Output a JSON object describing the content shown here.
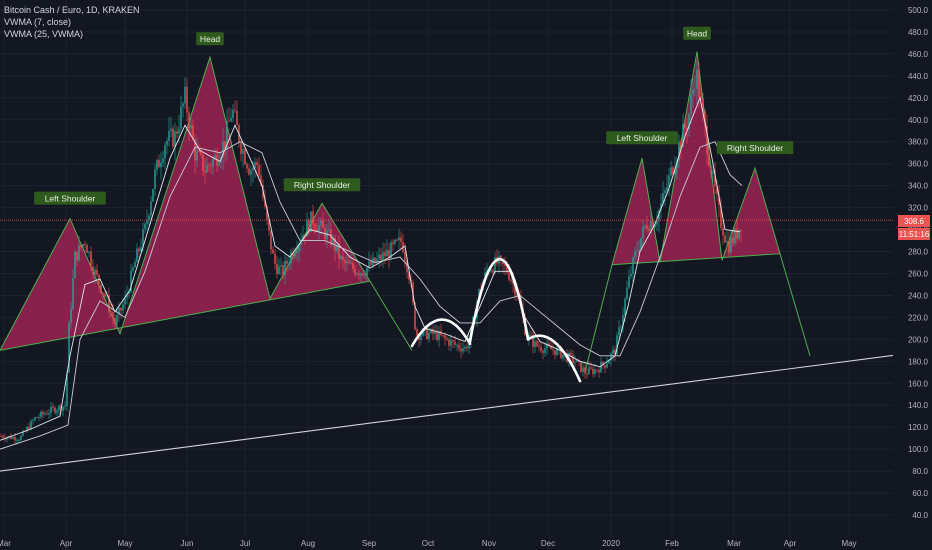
{
  "legend": {
    "title": "Bitcoin Cash / Euro, 1D, KRAKEN",
    "ind1": "VWMA (7, close)",
    "ind2": "VWMA (25, VWMA)"
  },
  "price_tag": {
    "value": "308.6",
    "countdown": "11:51:16",
    "price": 308.6
  },
  "colors": {
    "background": "#131722",
    "up": "#26a69a",
    "down": "#ef5350",
    "pattern_fill": "#b4245a",
    "pattern_stroke": "#4caf50",
    "trendline": "#d1d4dc",
    "label_bg": "#2e5a1e",
    "price_line": "#ef5350"
  },
  "chart_data": {
    "type": "candlestick",
    "x_axis": {
      "ticks": [
        "Mar",
        "Apr",
        "May",
        "Jun",
        "Jul",
        "Aug",
        "Sep",
        "Oct",
        "Nov",
        "Dec",
        "2020",
        "Feb",
        "Mar",
        "Apr",
        "May"
      ]
    },
    "y_axis": {
      "range": [
        30,
        500
      ],
      "ticks": [
        "500.0",
        "480.0",
        "460.0",
        "440.0",
        "420.0",
        "400.0",
        "380.0",
        "360.0",
        "340.0",
        "320.0",
        "300.0",
        "280.0",
        "260.0",
        "240.0",
        "220.0",
        "200.0",
        "180.0",
        "160.0",
        "140.0",
        "120.0",
        "100.0",
        "80.0",
        "60.0",
        "40.0"
      ]
    },
    "close_path": [
      [
        0,
        112
      ],
      [
        20,
        110
      ],
      [
        35,
        128
      ],
      [
        50,
        135
      ],
      [
        66,
        140
      ],
      [
        68,
        200
      ],
      [
        75,
        275
      ],
      [
        85,
        290
      ],
      [
        95,
        260
      ],
      [
        105,
        240
      ],
      [
        115,
        215
      ],
      [
        125,
        235
      ],
      [
        135,
        270
      ],
      [
        145,
        300
      ],
      [
        155,
        350
      ],
      [
        165,
        380
      ],
      [
        175,
        385
      ],
      [
        185,
        420
      ],
      [
        195,
        370
      ],
      [
        205,
        355
      ],
      [
        215,
        365
      ],
      [
        225,
        380
      ],
      [
        232,
        410
      ],
      [
        240,
        380
      ],
      [
        250,
        355
      ],
      [
        258,
        360
      ],
      [
        266,
        310
      ],
      [
        274,
        270
      ],
      [
        282,
        260
      ],
      [
        292,
        280
      ],
      [
        302,
        295
      ],
      [
        312,
        310
      ],
      [
        322,
        300
      ],
      [
        332,
        290
      ],
      [
        342,
        270
      ],
      [
        352,
        265
      ],
      [
        362,
        262
      ],
      [
        372,
        268
      ],
      [
        382,
        275
      ],
      [
        392,
        282
      ],
      [
        402,
        290
      ],
      [
        410,
        255
      ],
      [
        416,
        205
      ],
      [
        425,
        205
      ],
      [
        435,
        205
      ],
      [
        445,
        200
      ],
      [
        455,
        195
      ],
      [
        465,
        192
      ],
      [
        470,
        200
      ],
      [
        478,
        240
      ],
      [
        488,
        265
      ],
      [
        498,
        270
      ],
      [
        508,
        262
      ],
      [
        518,
        240
      ],
      [
        526,
        205
      ],
      [
        535,
        195
      ],
      [
        545,
        192
      ],
      [
        555,
        190
      ],
      [
        565,
        185
      ],
      [
        575,
        180
      ],
      [
        585,
        170
      ],
      [
        595,
        172
      ],
      [
        605,
        178
      ],
      [
        615,
        190
      ],
      [
        622,
        220
      ],
      [
        628,
        250
      ],
      [
        636,
        280
      ],
      [
        646,
        305
      ],
      [
        656,
        310
      ],
      [
        664,
        330
      ],
      [
        672,
        355
      ],
      [
        680,
        380
      ],
      [
        688,
        400
      ],
      [
        696,
        445
      ],
      [
        704,
        395
      ],
      [
        712,
        350
      ],
      [
        720,
        310
      ],
      [
        728,
        285
      ],
      [
        736,
        295
      ],
      [
        742,
        308
      ]
    ],
    "vwma7": [
      [
        0,
        108
      ],
      [
        30,
        118
      ],
      [
        60,
        130
      ],
      [
        70,
        185
      ],
      [
        85,
        250
      ],
      [
        100,
        255
      ],
      [
        115,
        225
      ],
      [
        130,
        245
      ],
      [
        150,
        305
      ],
      [
        170,
        365
      ],
      [
        185,
        395
      ],
      [
        200,
        372
      ],
      [
        220,
        362
      ],
      [
        235,
        395
      ],
      [
        250,
        365
      ],
      [
        262,
        340
      ],
      [
        275,
        285
      ],
      [
        290,
        275
      ],
      [
        310,
        300
      ],
      [
        330,
        295
      ],
      [
        350,
        275
      ],
      [
        370,
        265
      ],
      [
        390,
        275
      ],
      [
        405,
        285
      ],
      [
        415,
        230
      ],
      [
        425,
        210
      ],
      [
        445,
        205
      ],
      [
        465,
        198
      ],
      [
        480,
        230
      ],
      [
        495,
        262
      ],
      [
        510,
        262
      ],
      [
        525,
        220
      ],
      [
        540,
        198
      ],
      [
        560,
        190
      ],
      [
        580,
        180
      ],
      [
        600,
        175
      ],
      [
        615,
        185
      ],
      [
        628,
        230
      ],
      [
        640,
        280
      ],
      [
        655,
        305
      ],
      [
        670,
        340
      ],
      [
        685,
        385
      ],
      [
        700,
        420
      ],
      [
        712,
        365
      ],
      [
        725,
        300
      ],
      [
        740,
        298
      ]
    ],
    "vwma25": [
      [
        0,
        100
      ],
      [
        40,
        112
      ],
      [
        68,
        122
      ],
      [
        80,
        200
      ],
      [
        100,
        235
      ],
      [
        125,
        220
      ],
      [
        145,
        262
      ],
      [
        170,
        330
      ],
      [
        195,
        375
      ],
      [
        220,
        370
      ],
      [
        240,
        380
      ],
      [
        262,
        370
      ],
      [
        280,
        325
      ],
      [
        300,
        290
      ],
      [
        325,
        290
      ],
      [
        350,
        280
      ],
      [
        375,
        270
      ],
      [
        400,
        275
      ],
      [
        420,
        255
      ],
      [
        440,
        230
      ],
      [
        460,
        215
      ],
      [
        480,
        215
      ],
      [
        500,
        235
      ],
      [
        520,
        240
      ],
      [
        540,
        225
      ],
      [
        560,
        210
      ],
      [
        580,
        195
      ],
      [
        600,
        185
      ],
      [
        620,
        185
      ],
      [
        640,
        225
      ],
      [
        660,
        275
      ],
      [
        680,
        330
      ],
      [
        700,
        375
      ],
      [
        715,
        380
      ],
      [
        730,
        350
      ],
      [
        742,
        340
      ]
    ],
    "patterns": [
      {
        "label_left": "Left Shoulder",
        "label_head": "Head",
        "label_right": "Right Shoulder",
        "points": [
          [
            0,
            190
          ],
          [
            70,
            310
          ],
          [
            120,
            205
          ],
          [
            210,
            457
          ],
          [
            270,
            237
          ],
          [
            322,
            324
          ],
          [
            370,
            253
          ]
        ],
        "neckline": [
          [
            0,
            190
          ],
          [
            370,
            253
          ]
        ],
        "target": [
          [
            370,
            253
          ],
          [
            412,
            190
          ]
        ]
      },
      {
        "label_left": "Left Shoulder",
        "label_head": "Head",
        "label_right": "Right Shoulder",
        "points": [
          [
            612,
            268
          ],
          [
            642,
            365
          ],
          [
            660,
            270
          ],
          [
            697,
            462
          ],
          [
            722,
            272
          ],
          [
            755,
            356
          ],
          [
            780,
            278
          ]
        ],
        "neckline": [
          [
            612,
            268
          ],
          [
            780,
            278
          ]
        ],
        "target": [
          [
            780,
            278
          ],
          [
            810,
            185
          ]
        ],
        "entry": [
          [
            585,
            170
          ],
          [
            612,
            268
          ]
        ]
      }
    ],
    "arcs": [
      {
        "from": [
          412,
          194
        ],
        "peak": [
          442,
          218
        ],
        "to": [
          470,
          196
        ]
      },
      {
        "from": [
          470,
          198
        ],
        "peak": [
          500,
          273
        ],
        "to": [
          528,
          200
        ]
      },
      {
        "from": [
          528,
          200
        ],
        "peak": [
          554,
          198
        ],
        "to": [
          580,
          162
        ]
      }
    ],
    "trendline": [
      [
        0,
        80
      ],
      [
        932,
        190
      ]
    ],
    "price_line": 308.6
  }
}
